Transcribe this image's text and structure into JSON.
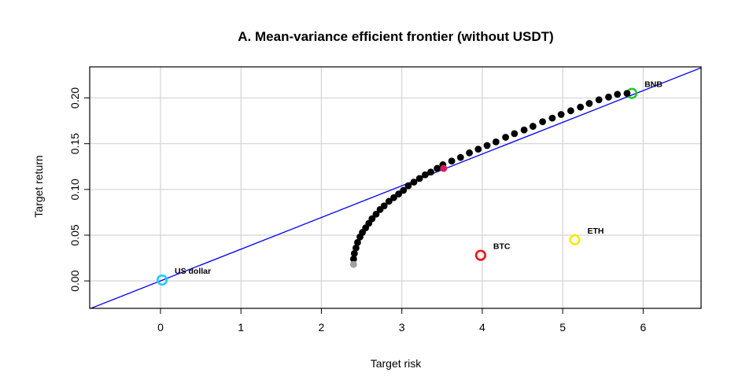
{
  "chart_data": {
    "type": "scatter",
    "title": "A. Mean-variance efficient frontier (without USDT)",
    "xlabel": "Target risk",
    "ylabel": "Target return",
    "xlim": [
      -0.88,
      6.72
    ],
    "ylim": [
      -0.03,
      0.234
    ],
    "x_ticks": [
      0,
      1,
      2,
      3,
      4,
      5,
      6
    ],
    "y_ticks": [
      0.0,
      0.05,
      0.1,
      0.15,
      0.2
    ],
    "y_tick_labels": [
      "0.00",
      "0.05",
      "0.10",
      "0.15",
      "0.20"
    ],
    "grid": true,
    "frontier": {
      "x": [
        2.4,
        2.41,
        2.43,
        2.45,
        2.48,
        2.51,
        2.55,
        2.59,
        2.63,
        2.68,
        2.73,
        2.78,
        2.84,
        2.9,
        2.96,
        3.02,
        3.08,
        3.15,
        3.22,
        3.29,
        3.36,
        3.44,
        3.51,
        3.62,
        3.73,
        3.84,
        3.95,
        4.06,
        4.17,
        4.29,
        4.4,
        4.52,
        4.63,
        4.75,
        4.87,
        4.98,
        5.1,
        5.22,
        5.33,
        5.45,
        5.57,
        5.68,
        5.8
      ],
      "y": [
        0.024,
        0.03,
        0.036,
        0.042,
        0.048,
        0.053,
        0.058,
        0.063,
        0.068,
        0.073,
        0.078,
        0.082,
        0.087,
        0.091,
        0.095,
        0.099,
        0.104,
        0.108,
        0.112,
        0.116,
        0.119,
        0.123,
        0.127,
        0.131,
        0.135,
        0.14,
        0.144,
        0.148,
        0.152,
        0.157,
        0.161,
        0.165,
        0.169,
        0.174,
        0.178,
        0.182,
        0.186,
        0.19,
        0.194,
        0.198,
        0.201,
        0.204,
        0.205
      ],
      "color": "#000000"
    },
    "min_variance_point": {
      "x": 2.4,
      "y": 0.018,
      "color": "#a0a0a0"
    },
    "tangency_point": {
      "x": 3.52,
      "y": 0.123,
      "color": "#d81b5a"
    },
    "capital_market_line": {
      "x": [
        -0.88,
        6.72
      ],
      "y": [
        -0.0305,
        0.233
      ],
      "color": "#0000ee"
    },
    "assets": [
      {
        "label": "US dollar",
        "x": 0.02,
        "y": 0.001,
        "color": "#22ccff"
      },
      {
        "label": "BTC",
        "x": 3.98,
        "y": 0.028,
        "color": "#e8131b"
      },
      {
        "label": "ETH",
        "x": 5.15,
        "y": 0.045,
        "color": "#ffe600"
      },
      {
        "label": "BNB",
        "x": 5.86,
        "y": 0.205,
        "color": "#22cc22"
      }
    ]
  }
}
